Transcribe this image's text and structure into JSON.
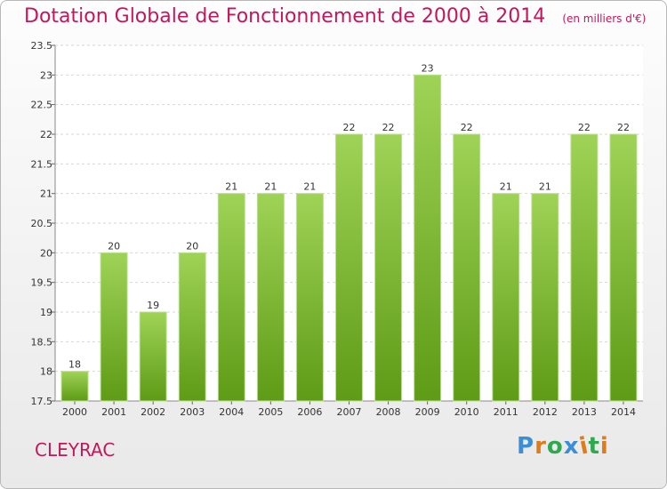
{
  "chart_data": {
    "type": "bar",
    "title": "Dotation Globale de Fonctionnement de 2000 à 2014",
    "subtitle": "(en milliers d'€)",
    "categories": [
      "2000",
      "2001",
      "2002",
      "2003",
      "2004",
      "2005",
      "2006",
      "2007",
      "2008",
      "2009",
      "2010",
      "2011",
      "2012",
      "2013",
      "2014"
    ],
    "values": [
      18,
      20,
      19,
      20,
      21,
      21,
      21,
      22,
      22,
      23,
      22,
      21,
      21,
      22,
      22
    ],
    "ylim": [
      17.5,
      23.5
    ],
    "yticks": [
      "17.5",
      "18",
      "18.5",
      "19",
      "19.5",
      "20",
      "20.5",
      "21",
      "21.5",
      "22",
      "22.5",
      "23",
      "23.5"
    ],
    "grid": true,
    "bar_color": "#7fc23a"
  },
  "footer": {
    "commune": "CLEYRAC",
    "logo_text": "Proxiti"
  },
  "colors": {
    "title": "#c2185b",
    "logo_letters": [
      "#3b8fd6",
      "#e07b1a",
      "#2fa84f",
      "#3b8fd6",
      "#e07b1a",
      "#2fa84f",
      "#e07b1a"
    ]
  }
}
